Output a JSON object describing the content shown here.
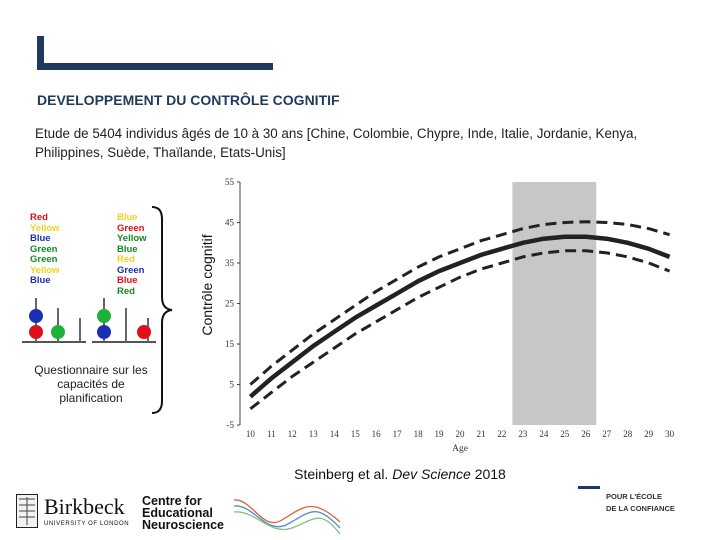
{
  "slide": {
    "title": "DEVELOPPEMENT DU CONTRÔLE COGNITIF",
    "subtitle": "Etude de 5404 individus âgés de 10 à 30 ans [Chine, Colombie, Chypre, Inde, Italie, Jordanie, Kenya, Philippines, Suède, Thaïlande, Etats-Unis]",
    "accent_color": "#1f3a5f"
  },
  "stroop": {
    "left_words": [
      {
        "text": "Red",
        "color": "#e0101b"
      },
      {
        "text": "Yellow",
        "color": "#f2d21e"
      },
      {
        "text": "Blue",
        "color": "#1b2fb5"
      },
      {
        "text": "Green",
        "color": "#138a23"
      },
      {
        "text": "Green",
        "color": "#138a23"
      },
      {
        "text": "Yellow",
        "color": "#f2d21e"
      },
      {
        "text": "Blue",
        "color": "#1b2fb5"
      }
    ],
    "right_words": [
      {
        "text": "Blue",
        "color": "#f2d21e"
      },
      {
        "text": "Green",
        "color": "#e0101b"
      },
      {
        "text": "Yellow",
        "color": "#138a23"
      },
      {
        "text": "Blue",
        "color": "#138a23"
      },
      {
        "text": "Red",
        "color": "#f2d21e"
      },
      {
        "text": "Green",
        "color": "#1b2fb5"
      },
      {
        "text": "Blue",
        "color": "#e0101b"
      },
      {
        "text": "Red",
        "color": "#138a23"
      }
    ],
    "caption": "Questionnaire sur les capacités de planification"
  },
  "chart_data": {
    "type": "line",
    "ylabel": "Contrôle cognitif",
    "xlabel": "Age",
    "x": [
      10,
      11,
      12,
      13,
      14,
      15,
      16,
      17,
      18,
      19,
      20,
      21,
      22,
      23,
      24,
      25,
      26,
      27,
      28,
      29,
      30
    ],
    "xticks": [
      "10",
      "11",
      "12",
      "13",
      "14",
      "15",
      "16",
      "17",
      "18",
      "19",
      "20",
      "21",
      "22",
      "23",
      "24",
      "25",
      "26",
      "27",
      "28",
      "29",
      "30"
    ],
    "yticks": [
      "-5",
      "5",
      "15",
      "25",
      "35",
      "45",
      "55"
    ],
    "ylim": [
      -5,
      55
    ],
    "xlim": [
      9.6,
      30.4
    ],
    "shaded_region": [
      23,
      26
    ],
    "series": [
      {
        "name": "mean",
        "style": "solid",
        "values": [
          2,
          6.5,
          10.5,
          14.5,
          18,
          21.5,
          24.5,
          27.5,
          30.5,
          33,
          35,
          37,
          38.5,
          40,
          41,
          41.5,
          41.5,
          41,
          40,
          38.5,
          36.5
        ]
      },
      {
        "name": "upper",
        "style": "dashed",
        "values": [
          5,
          9.5,
          13.5,
          17.5,
          21,
          24.5,
          28,
          31,
          34,
          36.5,
          38.5,
          40.5,
          42,
          43.5,
          44.5,
          45,
          45.2,
          45,
          44.5,
          43.5,
          42
        ]
      },
      {
        "name": "lower",
        "style": "dashed",
        "values": [
          -1,
          3,
          7,
          10.5,
          14,
          17.5,
          20.5,
          23.5,
          26.5,
          29,
          31.5,
          33.5,
          35,
          36.5,
          37.5,
          38,
          38,
          37.5,
          36.5,
          35,
          33
        ]
      }
    ]
  },
  "citation": {
    "prefix": "Steinberg et al.",
    "journal": "Dev Science",
    "year": "2018"
  },
  "footer": {
    "birkbeck_name": "Birkbeck",
    "birkbeck_sub": "UNIVERSITY OF LONDON",
    "centre_lines": [
      "Centre for",
      "Educational",
      "Neuroscience"
    ],
    "ecole_lines": [
      "POUR L'ÉCOLE",
      "DE LA CONFIANCE"
    ]
  }
}
